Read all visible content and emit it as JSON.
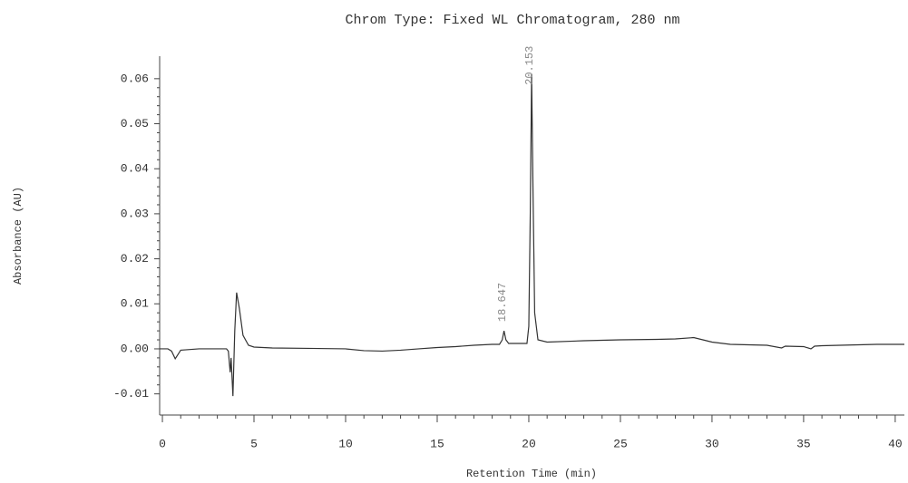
{
  "chart_data": {
    "type": "line",
    "title": "Chrom Type: Fixed WL Chromatogram, 280 nm",
    "xlabel": "Retention Time (min)",
    "ylabel": "Absorbance (AU)",
    "color": "#333333",
    "x": [
      -0.15,
      0.3,
      0.5,
      0.7,
      1,
      2,
      3,
      3.5,
      3.6,
      3.7,
      3.75,
      3.85,
      3.95,
      4.05,
      4.2,
      4.4,
      4.7,
      5,
      6,
      8,
      10,
      11,
      12,
      13,
      14,
      15,
      16,
      17,
      18,
      18.4,
      18.55,
      18.647,
      18.75,
      18.9,
      19.5,
      19.9,
      20.0,
      20.08,
      20.153,
      20.23,
      20.32,
      20.5,
      21,
      23,
      25,
      27,
      28,
      29,
      29.5,
      30,
      31,
      33,
      33.8,
      34,
      35,
      35.4,
      35.6,
      36,
      37,
      38,
      39,
      40,
      40.5
    ],
    "values": [
      0,
      0,
      -0.0005,
      -0.0022,
      -0.0003,
      0,
      0,
      0,
      -0.0005,
      -0.0052,
      -0.002,
      -0.0105,
      0.004,
      0.0125,
      0.009,
      0.003,
      0.0008,
      0.0004,
      0.0002,
      0.0001,
      0,
      -0.0004,
      -0.0005,
      -0.0003,
      0,
      0.0003,
      0.0005,
      0.0008,
      0.001,
      0.001,
      0.002,
      0.004,
      0.002,
      0.0012,
      0.0012,
      0.0012,
      0.005,
      0.03,
      0.061,
      0.035,
      0.008,
      0.002,
      0.0015,
      0.0018,
      0.002,
      0.0021,
      0.0022,
      0.0025,
      0.002,
      0.0015,
      0.001,
      0.0008,
      0.0002,
      0.0006,
      0.0005,
      0,
      0.0006,
      0.0007,
      0.0008,
      0.0009,
      0.001,
      0.001,
      0.001
    ],
    "annotations": [
      {
        "text": "18.647",
        "x": 18.647,
        "y": 0.004
      },
      {
        "text": "20.153",
        "x": 20.153,
        "y": 0.061
      }
    ],
    "xlim": [
      -0.15,
      40.5
    ],
    "ylim": [
      -0.0147,
      0.065
    ],
    "xticks": [
      0,
      5,
      10,
      15,
      20,
      25,
      30,
      35,
      40
    ],
    "yticks": [
      -0.01,
      {
        "value": 0,
        "label": "0.00"
      },
      0.01,
      0.02,
      0.03,
      0.04,
      0.05,
      0.06
    ],
    "grid": false
  }
}
